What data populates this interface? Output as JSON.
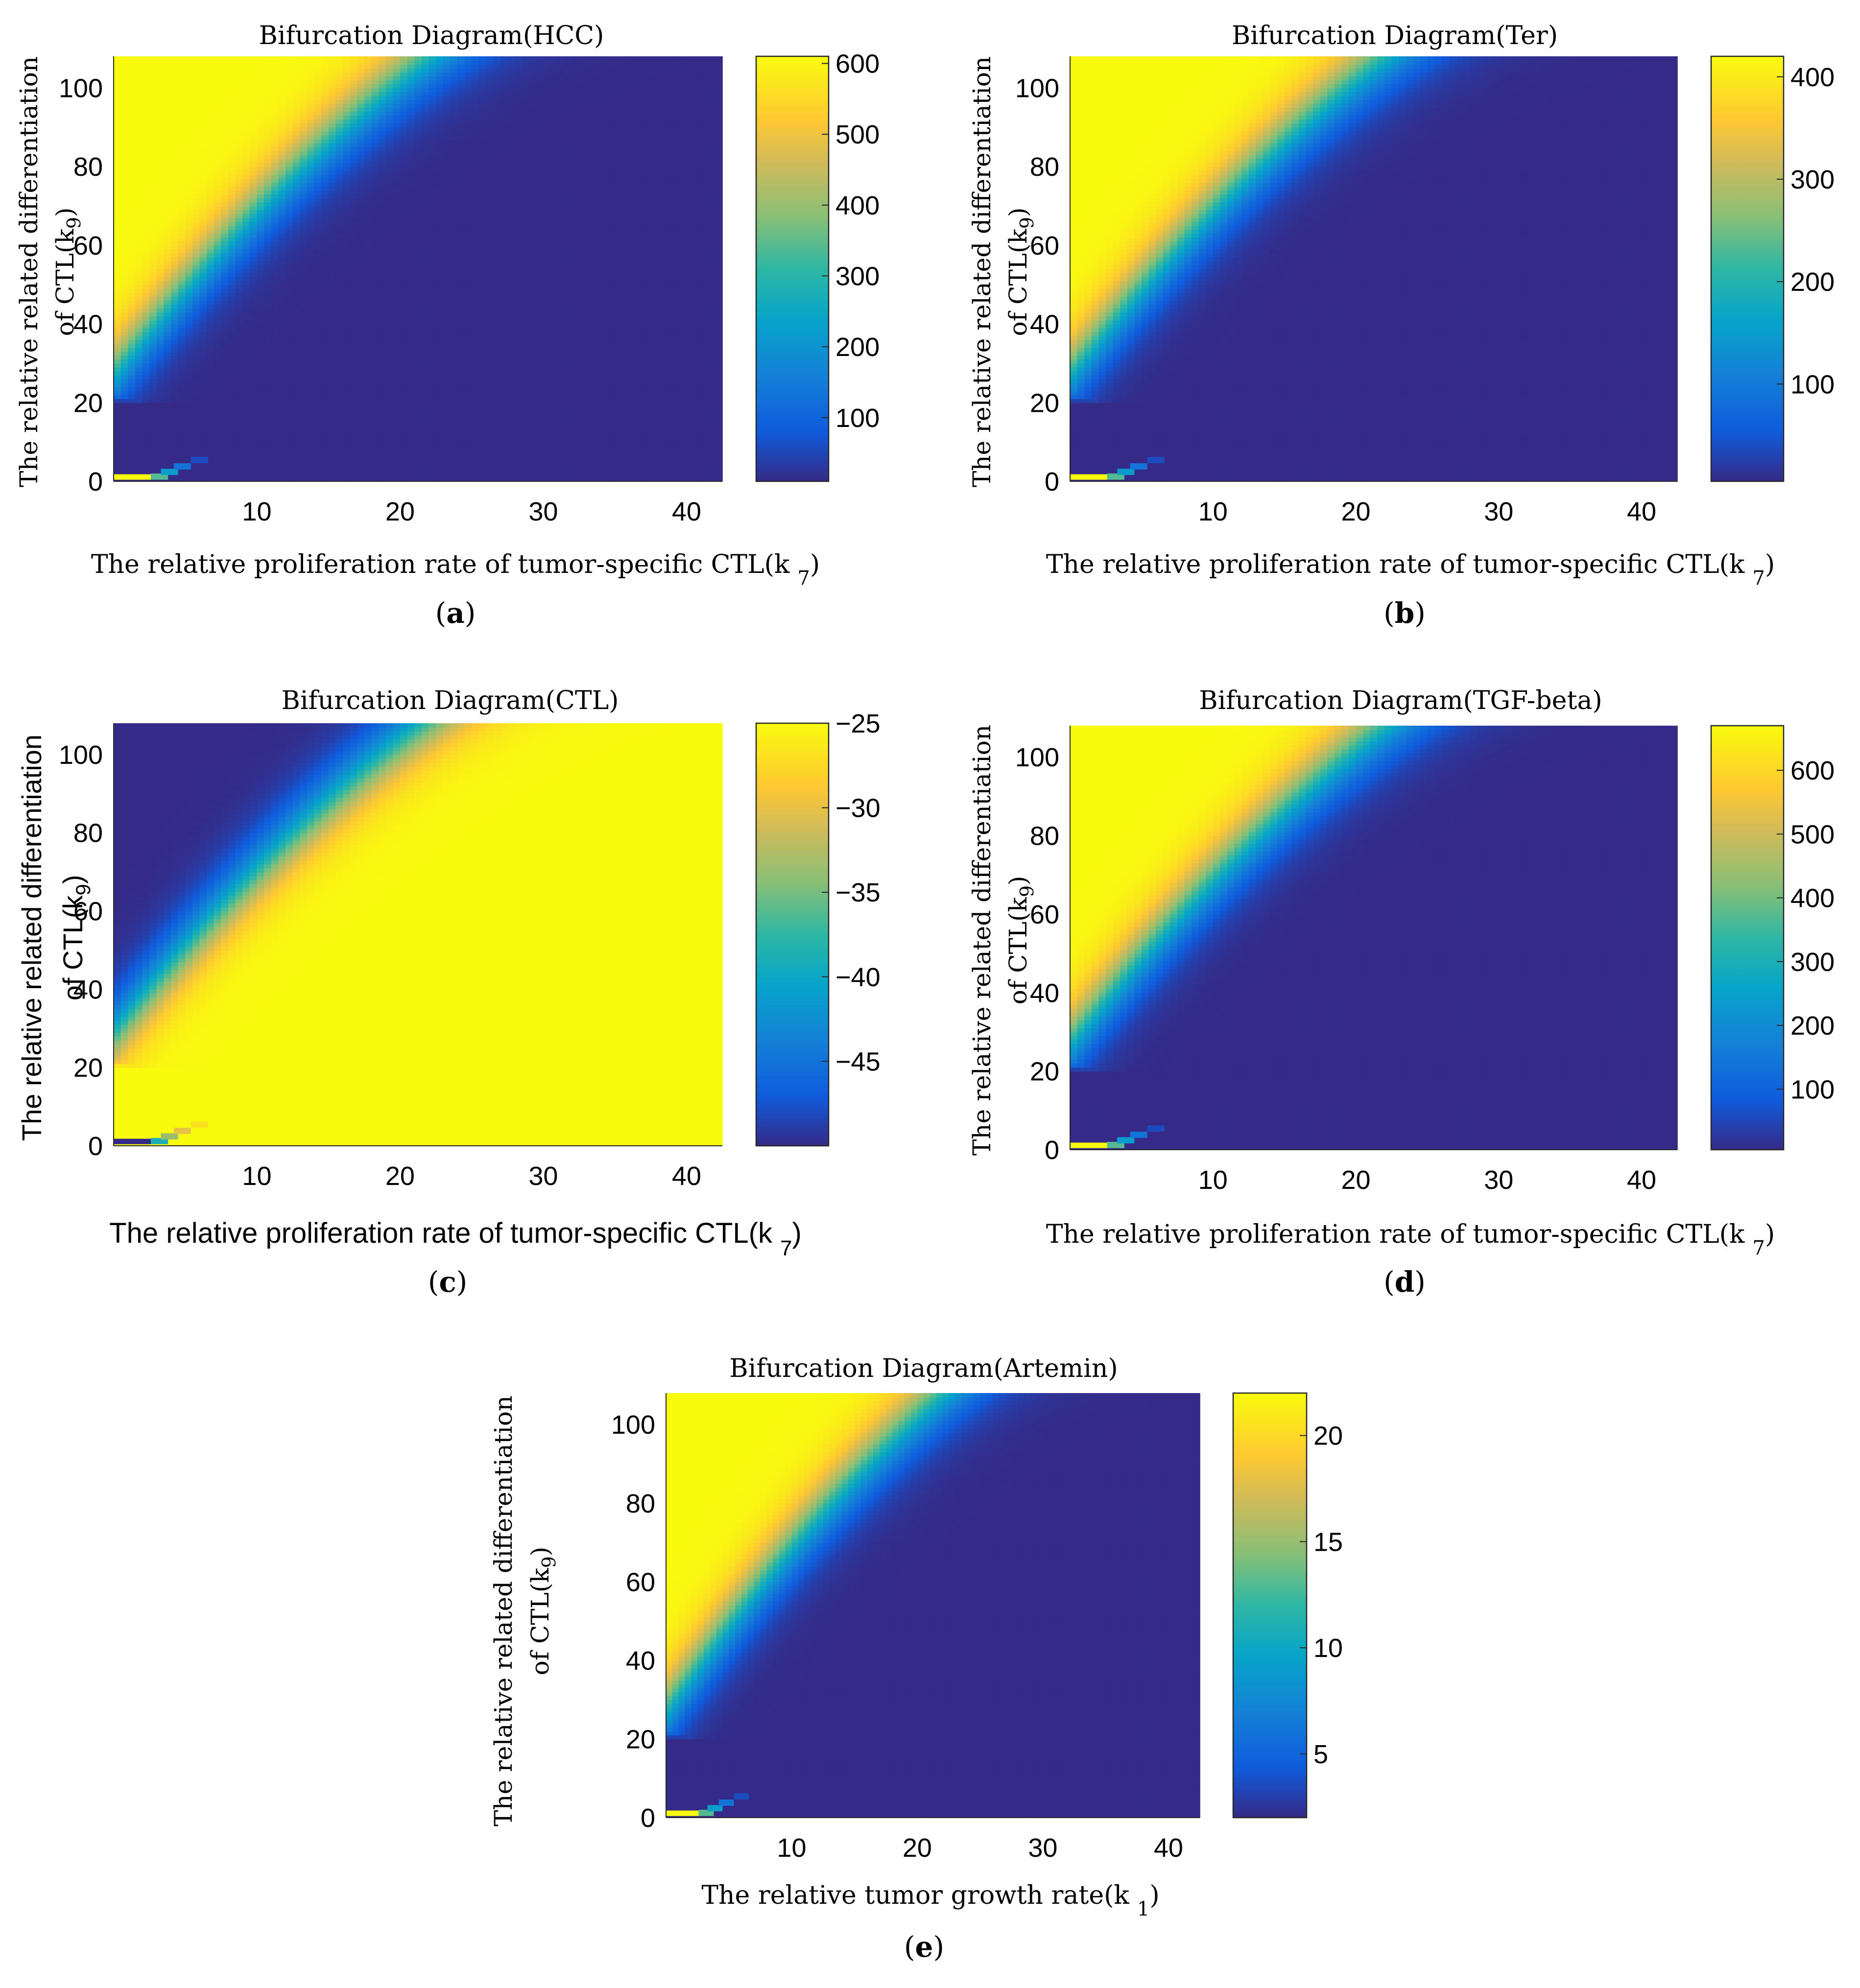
{
  "chart_data": [
    {
      "type": "heatmap",
      "panel_label": "a",
      "title": "Bifurcation Diagram(HCC)",
      "ylabel_line1": "The relative related differentiation",
      "ylabel_line2": "of CTL(k",
      "ylabel_sub": "9",
      "ylabel_close": ")",
      "xlabel": "The relative proliferation rate of tumor-specific CTL(k",
      "xlabel_sub": "7",
      "xlabel_close": ")",
      "xlim": [
        0,
        42.5
      ],
      "ylim": [
        0,
        108
      ],
      "xticks": [
        10,
        20,
        30,
        40
      ],
      "yticks": [
        0,
        20,
        40,
        60,
        80,
        100
      ],
      "colorbar_range": [
        10,
        610
      ],
      "colorbar_ticks": [
        100,
        200,
        300,
        400,
        500,
        600
      ],
      "inverted": false
    },
    {
      "type": "heatmap",
      "panel_label": "b",
      "title": "Bifurcation Diagram(Ter)",
      "ylabel_line1": "The relative related differentiation",
      "ylabel_line2": "of CTL(k",
      "ylabel_sub": "9",
      "ylabel_close": ")",
      "xlabel": "The relative proliferation rate of tumor-specific CTL(k",
      "xlabel_sub": "7",
      "xlabel_close": ")",
      "xlim": [
        0,
        42.5
      ],
      "ylim": [
        0,
        108
      ],
      "xticks": [
        10,
        20,
        30,
        40
      ],
      "yticks": [
        0,
        20,
        40,
        60,
        80,
        100
      ],
      "colorbar_range": [
        5,
        420
      ],
      "colorbar_ticks": [
        100,
        200,
        300,
        400
      ],
      "inverted": false
    },
    {
      "type": "heatmap",
      "panel_label": "c",
      "title": "Bifurcation Diagram(CTL)",
      "ylabel_line1": "The relative related differentiation",
      "ylabel_line2": "of CTL(k",
      "ylabel_sub": "9",
      "ylabel_close": ")",
      "xlabel": "The relative proliferation rate of tumor-specific CTL(k",
      "xlabel_sub": "7",
      "xlabel_close": ")",
      "xlim": [
        0,
        42.5
      ],
      "ylim": [
        0,
        108
      ],
      "xticks": [
        10,
        20,
        30,
        40
      ],
      "yticks": [
        0,
        20,
        40,
        60,
        80,
        100
      ],
      "colorbar_range": [
        -50,
        -25
      ],
      "colorbar_ticks": [
        -45,
        -40,
        -35,
        -30,
        -25
      ],
      "colorbar_tick_labels": [
        "−45",
        "−40",
        "−35",
        "−30",
        "−25"
      ],
      "inverted": true
    },
    {
      "type": "heatmap",
      "panel_label": "d",
      "title": "Bifurcation Diagram(TGF-beta)",
      "ylabel_line1": "The relative related differentiation",
      "ylabel_line2": "of CTL(k",
      "ylabel_sub": "9",
      "ylabel_close": ")",
      "xlabel": "The relative proliferation rate of tumor-specific CTL(k",
      "xlabel_sub": "7",
      "xlabel_close": ")",
      "xlim": [
        0,
        42.5
      ],
      "ylim": [
        0,
        108
      ],
      "xticks": [
        10,
        20,
        30,
        40
      ],
      "yticks": [
        0,
        20,
        40,
        60,
        80,
        100
      ],
      "colorbar_range": [
        5,
        670
      ],
      "colorbar_ticks": [
        100,
        200,
        300,
        400,
        500,
        600
      ],
      "inverted": false
    },
    {
      "type": "heatmap",
      "panel_label": "e",
      "title": "Bifurcation Diagram(Artemin)",
      "ylabel_line1": "The relative related differentiation",
      "ylabel_line2": "of CTL(k",
      "ylabel_sub": "9",
      "ylabel_close": ")",
      "xlabel": "The relative tumor growth rate(k",
      "xlabel_sub": "1",
      "xlabel_close": ")",
      "xlim": [
        0,
        42.5
      ],
      "ylim": [
        0,
        108
      ],
      "xticks": [
        10,
        20,
        30,
        40
      ],
      "yticks": [
        0,
        20,
        40,
        60,
        80,
        100
      ],
      "colorbar_range": [
        2,
        22
      ],
      "colorbar_ticks": [
        5,
        10,
        15,
        20
      ],
      "inverted": false
    }
  ]
}
